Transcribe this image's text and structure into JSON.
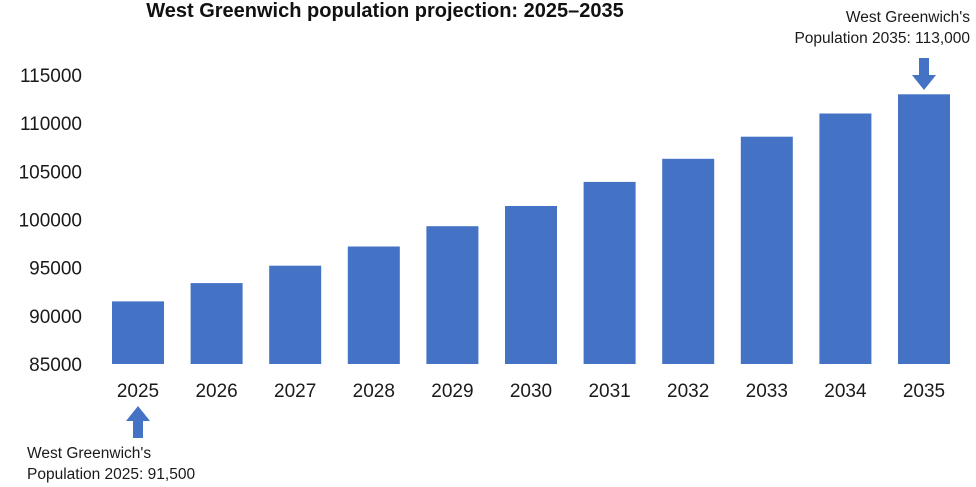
{
  "chart_data": {
    "type": "bar",
    "title": "West Greenwich population projection: 2025–2035",
    "xlabel": "",
    "ylabel": "",
    "categories": [
      "2025",
      "2026",
      "2027",
      "2028",
      "2029",
      "2030",
      "2031",
      "2032",
      "2033",
      "2034",
      "2035"
    ],
    "values": [
      91500,
      93400,
      95200,
      97200,
      99300,
      101400,
      103900,
      106300,
      108600,
      111000,
      113000
    ],
    "ylim": [
      85000,
      115000
    ],
    "yticks": [
      "85000",
      "90000",
      "95000",
      "100000",
      "105000",
      "110000",
      "115000"
    ],
    "grid": false,
    "legend": false,
    "bar_color": "#4472C4",
    "annotations": [
      {
        "category": "2025",
        "lines": [
          "West Greenwich's",
          "Population 2025: 91,500"
        ],
        "arrow": "up"
      },
      {
        "category": "2035",
        "lines": [
          "West Greenwich's",
          "Population 2035: 113,000"
        ],
        "arrow": "down"
      }
    ]
  }
}
